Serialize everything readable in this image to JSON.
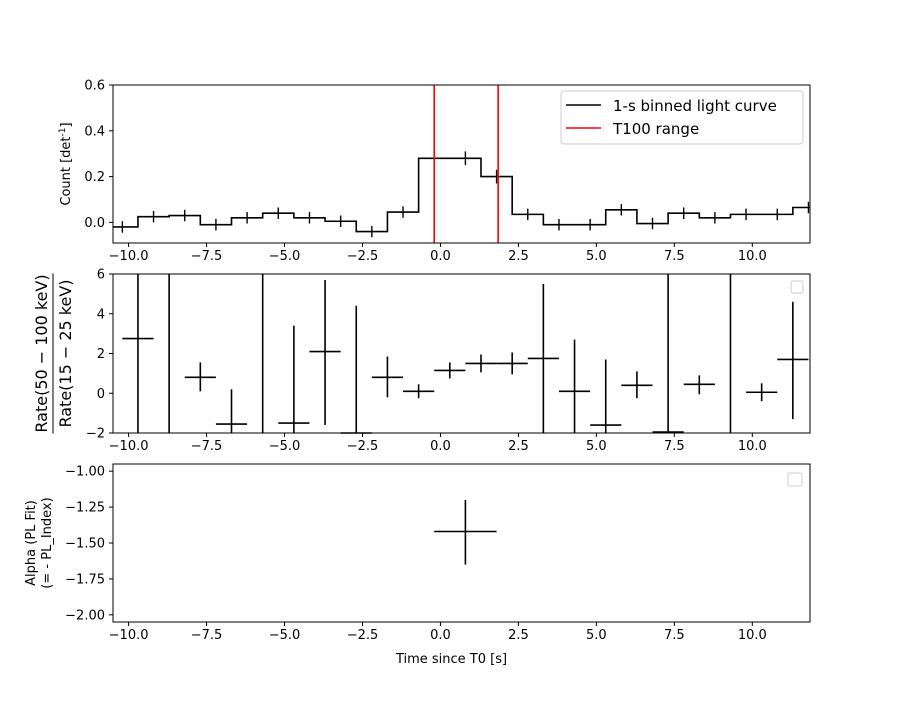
{
  "chart_data": [
    {
      "type": "line",
      "name": "panel-1",
      "ylabel": "Count [det",
      "ylabel_sup": "-1",
      "ylabel_end": "]",
      "xlim": [
        -10.5,
        11.85
      ],
      "ylim": [
        -0.09,
        0.6
      ],
      "xticks": [
        -10.0,
        -7.5,
        -5.0,
        -2.5,
        0.0,
        2.5,
        5.0,
        7.5,
        10.0
      ],
      "xtick_labels": [
        "−10.0",
        "−7.5",
        "−5.0",
        "−2.5",
        "0.0",
        "2.5",
        "5.0",
        "7.5",
        "10.0"
      ],
      "yticks": [
        0.0,
        0.2,
        0.4,
        0.6
      ],
      "ytick_labels": [
        "0.0",
        "0.2",
        "0.4",
        "0.6"
      ],
      "legend_position": "top-right",
      "legend": [
        "1-s binned light curve",
        "T100 range"
      ],
      "series": [
        {
          "name": "1-s binned light curve",
          "color": "#000000",
          "step_x": [
            -10.7,
            -9.7,
            -8.7,
            -7.7,
            -6.7,
            -5.7,
            -4.7,
            -3.7,
            -2.7,
            -1.7,
            -0.7,
            0.3,
            1.3,
            2.3,
            3.3,
            4.3,
            5.3,
            6.3,
            7.3,
            8.3,
            9.3,
            10.3,
            11.3
          ],
          "step_y": [
            -0.02,
            0.025,
            0.03,
            -0.01,
            0.02,
            0.04,
            0.02,
            0.005,
            -0.04,
            0.045,
            0.28,
            0.28,
            0.2,
            0.035,
            -0.01,
            -0.01,
            0.055,
            -0.005,
            0.04,
            0.02,
            0.035,
            0.035,
            0.065
          ],
          "yerr": [
            0.025,
            0.025,
            0.025,
            0.025,
            0.025,
            0.025,
            0.025,
            0.025,
            0.025,
            0.025,
            0.03,
            0.03,
            0.03,
            0.025,
            0.025,
            0.025,
            0.025,
            0.025,
            0.025,
            0.025,
            0.025,
            0.025,
            0.025
          ]
        },
        {
          "name": "T100 range",
          "color": "#ff0000",
          "vlines": [
            -0.2,
            1.85
          ]
        }
      ]
    },
    {
      "type": "scatter",
      "name": "panel-2",
      "ylabel_num": "Rate(50 − 100 keV)",
      "ylabel_den": "Rate(15 − 25 keV)",
      "xlim": [
        -10.5,
        11.85
      ],
      "ylim": [
        -2,
        6
      ],
      "xticks": [
        -10.0,
        -7.5,
        -5.0,
        -2.5,
        0.0,
        2.5,
        5.0,
        7.5,
        10.0
      ],
      "xtick_labels": [
        "−10.0",
        "−7.5",
        "−5.0",
        "−2.5",
        "0.0",
        "2.5",
        "5.0",
        "7.5",
        "10.0"
      ],
      "yticks": [
        -2,
        0,
        2,
        4,
        6
      ],
      "ytick_labels": [
        "−2",
        "0",
        "2",
        "4",
        "6"
      ],
      "legend_position": "top-right",
      "points": [
        {
          "x": -9.7,
          "y": 2.75,
          "ylo": -3,
          "yhi": 7,
          "xerr": 0.5
        },
        {
          "x": -8.7,
          "y": null,
          "ylo": -3,
          "yhi": 7,
          "xerr": 0
        },
        {
          "x": -7.7,
          "y": 0.8,
          "ylo": 0.1,
          "yhi": 1.55,
          "xerr": 0.5
        },
        {
          "x": -6.7,
          "y": -1.55,
          "ylo": -2.2,
          "yhi": 0.2,
          "xerr": 0.5
        },
        {
          "x": -5.7,
          "y": null,
          "ylo": -3,
          "yhi": 7,
          "xerr": 0
        },
        {
          "x": -4.7,
          "y": -1.5,
          "ylo": -2.2,
          "yhi": 3.4,
          "xerr": 0.5
        },
        {
          "x": -3.7,
          "y": 2.1,
          "ylo": -1.6,
          "yhi": 5.7,
          "xerr": 0.5
        },
        {
          "x": -2.7,
          "y": -2.0,
          "ylo": -2.2,
          "yhi": 4.4,
          "xerr": 0.5
        },
        {
          "x": -1.7,
          "y": 0.8,
          "ylo": -0.2,
          "yhi": 1.85,
          "xerr": 0.5
        },
        {
          "x": -0.7,
          "y": 0.1,
          "ylo": -0.25,
          "yhi": 0.45,
          "xerr": 0.5
        },
        {
          "x": 0.3,
          "y": 1.15,
          "ylo": 0.75,
          "yhi": 1.55,
          "xerr": 0.5
        },
        {
          "x": 1.3,
          "y": 1.5,
          "ylo": 1.05,
          "yhi": 1.95,
          "xerr": 0.5
        },
        {
          "x": 2.3,
          "y": 1.5,
          "ylo": 0.95,
          "yhi": 2.05,
          "xerr": 0.5
        },
        {
          "x": 3.3,
          "y": 1.75,
          "ylo": -2.2,
          "yhi": 5.5,
          "xerr": 0.5
        },
        {
          "x": 4.3,
          "y": 0.1,
          "ylo": -2.2,
          "yhi": 2.7,
          "xerr": 0.5
        },
        {
          "x": 5.3,
          "y": -1.6,
          "ylo": -2.2,
          "yhi": 1.7,
          "xerr": 0.5
        },
        {
          "x": 6.3,
          "y": 0.4,
          "ylo": -0.25,
          "yhi": 1.1,
          "xerr": 0.5
        },
        {
          "x": 7.3,
          "y": -1.95,
          "ylo": -2.2,
          "yhi": 7,
          "xerr": 0.5
        },
        {
          "x": 8.3,
          "y": 0.45,
          "ylo": -0.05,
          "yhi": 0.9,
          "xerr": 0.5
        },
        {
          "x": 9.3,
          "y": null,
          "ylo": -3,
          "yhi": 7,
          "xerr": 0
        },
        {
          "x": 10.3,
          "y": 0.05,
          "ylo": -0.4,
          "yhi": 0.5,
          "xerr": 0.5
        },
        {
          "x": 11.3,
          "y": 1.7,
          "ylo": -1.3,
          "yhi": 4.6,
          "xerr": 0.5
        }
      ]
    },
    {
      "type": "scatter",
      "name": "panel-3",
      "ylabel_line1": "Alpha (PL Fit)",
      "ylabel_line2": "(= - PL_Index)",
      "xlabel": "Time since T0 [s]",
      "xlim": [
        -10.5,
        11.85
      ],
      "ylim": [
        -2.05,
        -0.95
      ],
      "xticks": [
        -10.0,
        -7.5,
        -5.0,
        -2.5,
        0.0,
        2.5,
        5.0,
        7.5,
        10.0
      ],
      "xtick_labels": [
        "−10.0",
        "−7.5",
        "−5.0",
        "−2.5",
        "0.0",
        "2.5",
        "5.0",
        "7.5",
        "10.0"
      ],
      "yticks": [
        -1.0,
        -1.25,
        -1.5,
        -1.75,
        -2.0
      ],
      "ytick_labels": [
        "−1.00",
        "−1.25",
        "−1.50",
        "−1.75",
        "−2.00"
      ],
      "legend_position": "top-right",
      "points": [
        {
          "x": 0.8,
          "y": -1.42,
          "ylo": -1.65,
          "yhi": -1.2,
          "xerr": 1.0
        }
      ]
    }
  ]
}
